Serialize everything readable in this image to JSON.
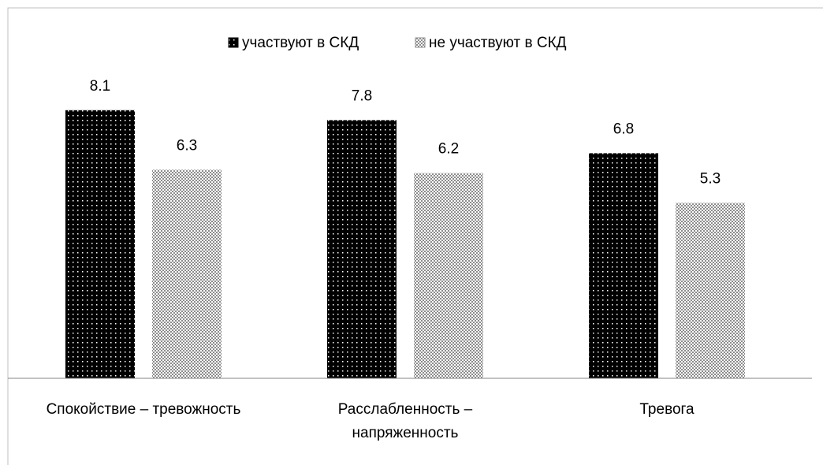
{
  "chart_data": {
    "type": "bar",
    "categories": [
      "Спокойствие – тревожность",
      "Расслабленность – напряженность",
      "Тревога"
    ],
    "series": [
      {
        "name": "участвуют в СКД",
        "color": "#000000",
        "values": [
          8.1,
          7.8,
          6.8
        ]
      },
      {
        "name": "не участвуют в СКД",
        "color": "#8c8c8c",
        "values": [
          6.3,
          6.2,
          5.3
        ]
      }
    ],
    "legend": "top"
  }
}
